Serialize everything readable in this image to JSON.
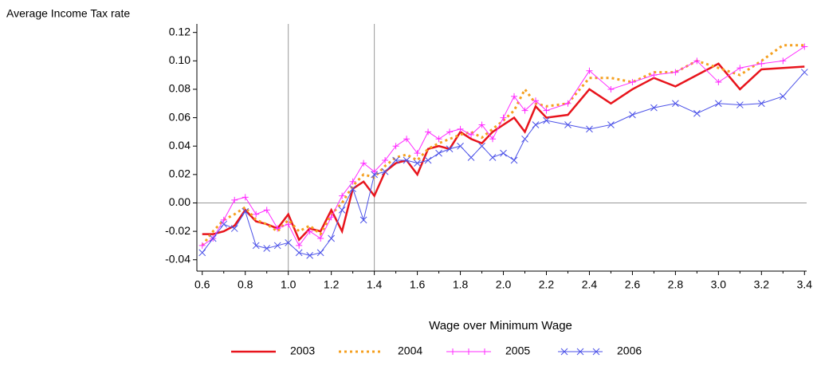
{
  "chart_data": {
    "type": "line",
    "y_axis_label": "Average Income Tax rate",
    "x_axis_label": "Wage over Minimum Wage",
    "x": [
      0.6,
      0.65,
      0.7,
      0.75,
      0.8,
      0.85,
      0.9,
      0.95,
      1.0,
      1.05,
      1.1,
      1.15,
      1.2,
      1.25,
      1.3,
      1.35,
      1.4,
      1.45,
      1.5,
      1.55,
      1.6,
      1.65,
      1.7,
      1.75,
      1.8,
      1.85,
      1.9,
      1.95,
      2.0,
      2.05,
      2.1,
      2.15,
      2.2,
      2.3,
      2.4,
      2.5,
      2.6,
      2.7,
      2.8,
      2.9,
      3.0,
      3.1,
      3.2,
      3.3,
      3.4
    ],
    "series": [
      {
        "name": "2003",
        "color": "#e8141c",
        "style": "solid",
        "marker": "none",
        "values": [
          -0.022,
          -0.022,
          -0.02,
          -0.016,
          -0.005,
          -0.013,
          -0.015,
          -0.018,
          -0.008,
          -0.026,
          -0.018,
          -0.02,
          -0.005,
          -0.02,
          0.01,
          0.015,
          0.005,
          0.022,
          0.028,
          0.03,
          0.02,
          0.038,
          0.04,
          0.038,
          0.05,
          0.045,
          0.042,
          0.05,
          0.055,
          0.06,
          0.05,
          0.068,
          0.06,
          0.062,
          0.08,
          0.07,
          0.08,
          0.088,
          0.082,
          0.09,
          0.098,
          0.08,
          0.094,
          0.095,
          0.096
        ]
      },
      {
        "name": "2004",
        "color": "#f5a020",
        "style": "dotted",
        "marker": "none",
        "values": [
          -0.03,
          -0.02,
          -0.012,
          -0.008,
          -0.003,
          -0.012,
          -0.015,
          -0.02,
          -0.012,
          -0.02,
          -0.016,
          -0.022,
          -0.008,
          0.0,
          0.012,
          0.02,
          0.018,
          0.026,
          0.032,
          0.034,
          0.03,
          0.038,
          0.042,
          0.045,
          0.048,
          0.05,
          0.046,
          0.052,
          0.058,
          0.065,
          0.08,
          0.07,
          0.068,
          0.07,
          0.088,
          0.088,
          0.085,
          0.092,
          0.092,
          0.1,
          0.095,
          0.09,
          0.1,
          0.111,
          0.111
        ]
      },
      {
        "name": "2005",
        "color": "#ff2bff",
        "style": "solid",
        "marker": "plus",
        "values": [
          -0.03,
          -0.025,
          -0.012,
          0.002,
          0.004,
          -0.008,
          -0.005,
          -0.018,
          -0.015,
          -0.03,
          -0.02,
          -0.025,
          -0.01,
          0.005,
          0.015,
          0.028,
          0.022,
          0.03,
          0.04,
          0.045,
          0.035,
          0.05,
          0.045,
          0.05,
          0.052,
          0.048,
          0.055,
          0.045,
          0.06,
          0.075,
          0.065,
          0.072,
          0.065,
          0.07,
          0.093,
          0.08,
          0.085,
          0.09,
          0.092,
          0.1,
          0.085,
          0.095,
          0.098,
          0.1,
          0.11
        ]
      },
      {
        "name": "2006",
        "color": "#4c52e8",
        "style": "solid",
        "marker": "x",
        "values": [
          -0.035,
          -0.025,
          -0.015,
          -0.018,
          -0.006,
          -0.03,
          -0.032,
          -0.03,
          -0.028,
          -0.035,
          -0.037,
          -0.035,
          -0.025,
          -0.005,
          0.01,
          -0.012,
          0.02,
          0.022,
          0.03,
          0.03,
          0.028,
          0.03,
          0.035,
          0.038,
          0.04,
          0.032,
          0.04,
          0.032,
          0.035,
          0.03,
          0.045,
          0.055,
          0.058,
          0.055,
          0.052,
          0.055,
          0.062,
          0.067,
          0.07,
          0.063,
          0.07,
          0.069,
          0.07,
          0.075,
          0.092
        ]
      }
    ],
    "xlim": [
      0.575,
      3.41
    ],
    "ylim": [
      -0.048,
      0.126
    ],
    "xticks": [
      {
        "value": 0.6,
        "label": "0.6"
      },
      {
        "value": 0.8,
        "label": "0.8"
      },
      {
        "value": 1.0,
        "label": "1.0"
      },
      {
        "value": 1.2,
        "label": "1.2"
      },
      {
        "value": 1.4,
        "label": "1.4"
      },
      {
        "value": 1.6,
        "label": "1.6"
      },
      {
        "value": 1.8,
        "label": "1.8"
      },
      {
        "value": 2.0,
        "label": "2.0"
      },
      {
        "value": 2.2,
        "label": "2.2"
      },
      {
        "value": 2.4,
        "label": "2.4"
      },
      {
        "value": 2.6,
        "label": "2.6"
      },
      {
        "value": 2.8,
        "label": "2.8"
      },
      {
        "value": 3.0,
        "label": "3.0"
      },
      {
        "value": 3.2,
        "label": "3.2"
      },
      {
        "value": 3.4,
        "label": "3.4"
      }
    ],
    "yticks": [
      {
        "value": -0.04,
        "label": "-0.04"
      },
      {
        "value": -0.02,
        "label": "-0.02"
      },
      {
        "value": 0,
        "label": "0.00"
      },
      {
        "value": 0.02,
        "label": "0.02"
      },
      {
        "value": 0.04,
        "label": "0.04"
      },
      {
        "value": 0.06,
        "label": "0.06"
      },
      {
        "value": 0.08,
        "label": "0.08"
      },
      {
        "value": 0.1,
        "label": "0.10"
      },
      {
        "value": 0.12,
        "label": "0.12"
      }
    ],
    "reference_x": [
      1.0,
      1.4
    ],
    "reference_y": [
      0
    ],
    "legend": "bottom"
  }
}
